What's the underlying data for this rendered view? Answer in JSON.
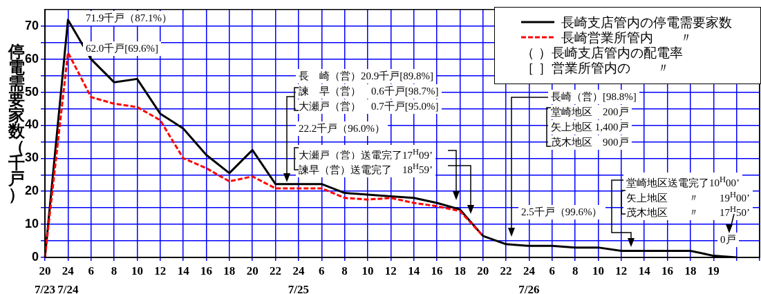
{
  "chart_data": {
    "type": "line",
    "ylabel": "停電需要家数（千戸）",
    "categories": [
      "20\n7/23",
      "24\n7/24",
      "6",
      "8",
      "10",
      "12",
      "14",
      "16",
      "18",
      "20",
      "22",
      "24\n7/25",
      "6",
      "8",
      "10",
      "12",
      "14",
      "16",
      "18",
      "20",
      "22",
      "24\n7/26",
      "6",
      "8",
      "10",
      "12",
      "14",
      "16",
      "18",
      "19",
      null,
      null
    ],
    "series": [
      {
        "name": "長崎支店管内の停電需要家数",
        "color": "#000000",
        "line_style": "solid",
        "values": [
          0,
          71.9,
          60,
          53,
          54,
          43.5,
          39,
          31,
          25.5,
          32.5,
          22.2,
          22.2,
          22.2,
          19.5,
          19,
          18.5,
          18,
          16.5,
          14.5,
          6.5,
          4,
          3.5,
          3.5,
          3,
          3,
          2,
          2,
          2,
          2,
          0.5,
          0,
          null
        ]
      },
      {
        "name": "長崎営業所管内　　〃",
        "color": "#ff0000",
        "line_style": "dashed",
        "values": [
          0,
          62.0,
          48.5,
          46.5,
          45.5,
          41.5,
          30,
          27,
          23,
          24.5,
          20.9,
          20.9,
          20.9,
          18,
          17.5,
          18,
          16.5,
          15.5,
          14,
          6.5,
          null,
          null,
          null,
          null,
          null,
          null,
          null,
          null,
          null,
          null,
          null,
          null
        ]
      }
    ],
    "ylim": [
      0,
      75
    ],
    "yticks": [
      0,
      {
        "value": 5,
        "label": null
      },
      10,
      {
        "value": 15,
        "label": null
      },
      20,
      {
        "value": 25,
        "label": null
      },
      30,
      {
        "value": 35,
        "label": null
      },
      40,
      {
        "value": 45,
        "label": null
      },
      50,
      {
        "value": 55,
        "label": null
      },
      60,
      {
        "value": 65,
        "label": null
      },
      70
    ],
    "grid": true,
    "legend": "top right",
    "annotations": [
      "71.9千戸（87.1%）",
      "62.0千戸[69.6%]",
      "長　崎（営）20.9千戸[89.8%]",
      "諫　早（営）　0.6千戸[98.7%]",
      "大瀬戸（営）　0.7千戸[95.0%]",
      "22.2千戸（96.0%）",
      "大瀬戸（営）送電完了17$^{H}$09’",
      "諫早（営）送電完了　18$^{H}$59’",
      "長崎（営）[98.8%]",
      "堂崎地区　200戸",
      "矢上地区 1,400戸",
      "茂木地区　900戸",
      "2.5千戸（99.6%）",
      "堂崎地区送電完了10$^{H}$00’",
      "矢上地区　　〃　　19$^{H}$00’",
      "茂木地区　　〃　　17$^{H}$50’",
      "0戸",
      "（ ）長崎支店管内の配電率",
      "［ ］営業所管内の　　〃"
    ]
  }
}
